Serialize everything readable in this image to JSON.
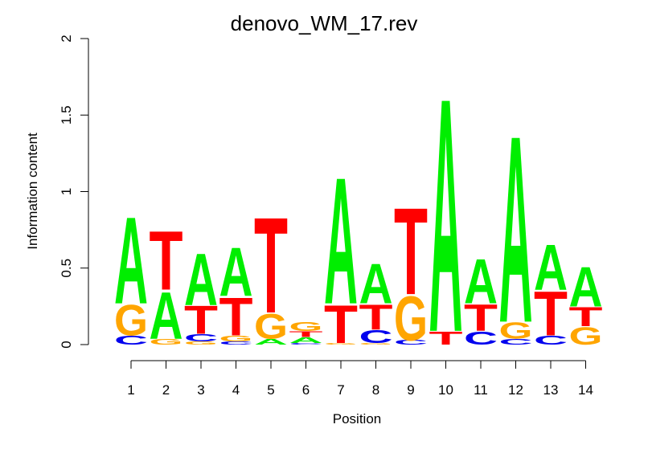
{
  "chart_data": {
    "type": "sequence-logo",
    "title": "denovo_WM_17.rev",
    "xlabel": "Position",
    "ylabel": "Information content",
    "ylim": [
      0,
      2
    ],
    "y_ticks": [
      "0",
      "0.5",
      "1",
      "1.5",
      "2"
    ],
    "x_ticks": [
      "1",
      "2",
      "3",
      "4",
      "5",
      "6",
      "7",
      "8",
      "9",
      "10",
      "11",
      "12",
      "13",
      "14"
    ],
    "colors": {
      "A": "#00ee00",
      "C": "#0000ee",
      "G": "#ffa500",
      "T": "#ff0000"
    },
    "positions": [
      {
        "pos": "1",
        "stack": [
          {
            "letter": "C",
            "bits": 0.06
          },
          {
            "letter": "G",
            "bits": 0.21
          },
          {
            "letter": "A",
            "bits": 0.59
          }
        ]
      },
      {
        "pos": "2",
        "stack": [
          {
            "letter": "G",
            "bits": 0.04
          },
          {
            "letter": "A",
            "bits": 0.32
          },
          {
            "letter": "T",
            "bits": 0.4
          }
        ]
      },
      {
        "pos": "3",
        "stack": [
          {
            "letter": "G",
            "bits": 0.02
          },
          {
            "letter": "C",
            "bits": 0.05
          },
          {
            "letter": "T",
            "bits": 0.19
          },
          {
            "letter": "A",
            "bits": 0.35
          }
        ]
      },
      {
        "pos": "4",
        "stack": [
          {
            "letter": "C",
            "bits": 0.02
          },
          {
            "letter": "G",
            "bits": 0.04
          },
          {
            "letter": "T",
            "bits": 0.26
          },
          {
            "letter": "A",
            "bits": 0.33
          }
        ]
      },
      {
        "pos": "5",
        "stack": [
          {
            "letter": "A",
            "bits": 0.04
          },
          {
            "letter": "G",
            "bits": 0.17
          },
          {
            "letter": "T",
            "bits": 0.65
          }
        ]
      },
      {
        "pos": "6",
        "stack": [
          {
            "letter": "C",
            "bits": 0.01
          },
          {
            "letter": "A",
            "bits": 0.04
          },
          {
            "letter": "T",
            "bits": 0.04
          },
          {
            "letter": "G",
            "bits": 0.06
          }
        ]
      },
      {
        "pos": "7",
        "stack": [
          {
            "letter": "G",
            "bits": 0.01
          },
          {
            "letter": "T",
            "bits": 0.26
          },
          {
            "letter": "A",
            "bits": 0.86
          }
        ]
      },
      {
        "pos": "8",
        "stack": [
          {
            "letter": "G",
            "bits": 0.01
          },
          {
            "letter": "C",
            "bits": 0.09
          },
          {
            "letter": "T",
            "bits": 0.17
          },
          {
            "letter": "A",
            "bits": 0.27
          }
        ]
      },
      {
        "pos": "9",
        "stack": [
          {
            "letter": "C",
            "bits": 0.03
          },
          {
            "letter": "G",
            "bits": 0.3
          },
          {
            "letter": "T",
            "bits": 0.59
          }
        ]
      },
      {
        "pos": "10",
        "stack": [
          {
            "letter": "T",
            "bits": 0.09
          },
          {
            "letter": "A",
            "bits": 1.59
          }
        ]
      },
      {
        "pos": "11",
        "stack": [
          {
            "letter": "C",
            "bits": 0.09
          },
          {
            "letter": "T",
            "bits": 0.18
          },
          {
            "letter": "A",
            "bits": 0.3
          }
        ]
      },
      {
        "pos": "12",
        "stack": [
          {
            "letter": "C",
            "bits": 0.04
          },
          {
            "letter": "G",
            "bits": 0.11
          },
          {
            "letter": "A",
            "bits": 1.27
          }
        ]
      },
      {
        "pos": "13",
        "stack": [
          {
            "letter": "C",
            "bits": 0.06
          },
          {
            "letter": "T",
            "bits": 0.3
          },
          {
            "letter": "A",
            "bits": 0.31
          }
        ]
      },
      {
        "pos": "14",
        "stack": [
          {
            "letter": "G",
            "bits": 0.12
          },
          {
            "letter": "T",
            "bits": 0.13
          },
          {
            "letter": "A",
            "bits": 0.27
          }
        ]
      }
    ]
  }
}
